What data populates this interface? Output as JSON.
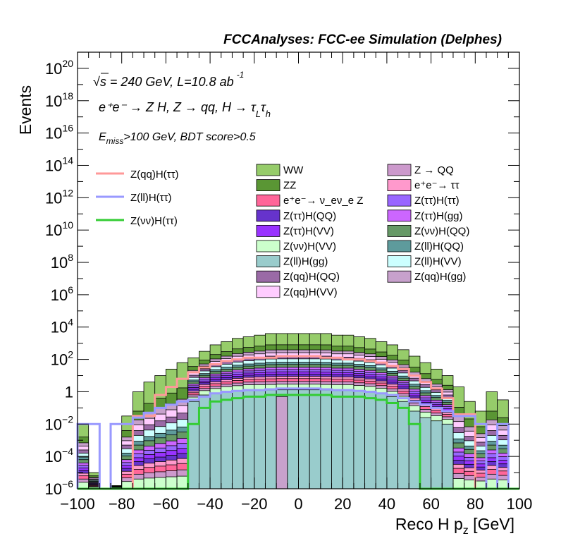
{
  "chart_data": {
    "type": "bar",
    "title": "FCCAnalyses: FCC-ee Simulation (Delphes)",
    "xlabel": "Reco H p_z [GeV]",
    "ylabel": "Events",
    "xlim": [
      -100,
      100
    ],
    "ylim_log10": [
      -6,
      21
    ],
    "y_scale": "log",
    "x_ticks": [
      -100,
      -80,
      -60,
      -40,
      -20,
      0,
      20,
      40,
      60,
      80,
      100
    ],
    "x_tick_labels": [
      "−100",
      "−80",
      "−60",
      "−40",
      "−20",
      "0",
      "20",
      "40",
      "60",
      "80",
      "100"
    ],
    "y_ticks": [
      {
        "exp": -6,
        "base": "10",
        "sup": "−6"
      },
      {
        "exp": -4,
        "base": "10",
        "sup": "−4"
      },
      {
        "exp": -2,
        "base": "10",
        "sup": "−2"
      },
      {
        "exp": 0,
        "base": "1",
        "sup": ""
      },
      {
        "exp": 2,
        "base": "10",
        "sup": "2"
      },
      {
        "exp": 4,
        "base": "10",
        "sup": "4"
      },
      {
        "exp": 6,
        "base": "10",
        "sup": "6"
      },
      {
        "exp": 8,
        "base": "10",
        "sup": "8"
      },
      {
        "exp": 10,
        "base": "10",
        "sup": "10"
      },
      {
        "exp": 12,
        "base": "10",
        "sup": "12"
      },
      {
        "exp": 14,
        "base": "10",
        "sup": "14"
      },
      {
        "exp": 16,
        "base": "10",
        "sup": "16"
      },
      {
        "exp": 18,
        "base": "10",
        "sup": "18"
      },
      {
        "exp": 20,
        "base": "10",
        "sup": "20"
      }
    ],
    "annotations": {
      "energy": "√s = 240 GeV, L=10.8 ab",
      "energy_sup": "-1",
      "process": "e⁺e⁻ → Z H, Z → qq, H → τ_L τ_h",
      "cut": "E_miss>100 GeV, BDT score>0.5"
    },
    "bin_edges": [
      -100,
      -95,
      -90,
      -85,
      -80,
      -75,
      -70,
      -65,
      -60,
      -55,
      -50,
      -45,
      -40,
      -35,
      -30,
      -25,
      -20,
      -15,
      -10,
      -5,
      0,
      5,
      10,
      15,
      20,
      25,
      30,
      35,
      40,
      45,
      50,
      55,
      60,
      65,
      70,
      75,
      80,
      85,
      90,
      95,
      100
    ],
    "stack_totals_log10": [
      -2.0,
      -5.0,
      -6.0,
      -5.8,
      -1.5,
      0.0,
      0.6,
      1.0,
      1.4,
      1.8,
      2.1,
      2.5,
      2.9,
      3.1,
      3.3,
      3.4,
      3.5,
      3.6,
      3.6,
      3.6,
      3.6,
      3.6,
      3.6,
      3.5,
      3.5,
      3.4,
      3.3,
      3.1,
      2.9,
      2.6,
      2.2,
      1.8,
      1.4,
      1.0,
      0.3,
      -0.6,
      -1.2,
      0.0,
      -0.5,
      -6.0
    ],
    "background_layers": [
      {
        "name": "WW",
        "color": "#96cc6a",
        "fraction": 1.0
      },
      {
        "name": "ZZ",
        "color": "#5a9634",
        "fraction": 0.8
      },
      {
        "name": "Z(qq)H(gg)",
        "color": "#c7a1cc",
        "fraction": 0.71
      },
      {
        "name": "Z(qq)H(VV)",
        "color": "#ffccff",
        "fraction": 0.66
      },
      {
        "name": "Z(qq)H(QQ)",
        "color": "#9a6aa6",
        "fraction": 0.6
      },
      {
        "name": "Z(ll)H(VV)",
        "color": "#ccffff",
        "fraction": 0.55
      },
      {
        "name": "Z(ll)H(QQ)",
        "color": "#5e9b9c",
        "fraction": 0.49
      },
      {
        "name": "Z(νν)H(QQ)",
        "color": "#669966",
        "fraction": 0.45
      },
      {
        "name": "Z(ττ)H(gg)",
        "color": "#cc66ff",
        "fraction": 0.4
      },
      {
        "name": "Z(ττ)H(ττ)",
        "color": "#9966ff",
        "fraction": 0.36
      },
      {
        "name": "Z(ττ)H(VV)",
        "color": "#9933ff",
        "fraction": 0.32
      },
      {
        "name": "Z(ττ)H(QQ)",
        "color": "#6633cc",
        "fraction": 0.28
      },
      {
        "name": "e⁺e⁻→ ττ",
        "color": "#ff99cc",
        "fraction": 0.24
      },
      {
        "name": "e⁺e⁻→ ν_eν_e Z",
        "color": "#ff6699",
        "fraction": 0.2
      },
      {
        "name": "Z → QQ",
        "color": "#cc99cc",
        "fraction": 0.15
      },
      {
        "name": "Z(νν)H(VV)",
        "color": "#ccffcc",
        "fraction": 0.1
      },
      {
        "name": "Z(ll)H(gg)",
        "color": "#99cccc",
        "fraction": 0.0
      }
    ],
    "base_layer_log10": [
      -6,
      -6,
      -6,
      -6,
      -6,
      -6,
      -6,
      -6,
      -6,
      -6,
      -0.6,
      -0.2,
      -0.1,
      0.0,
      0.05,
      0.1,
      0.1,
      0.1,
      0.12,
      0.12,
      0.12,
      0.12,
      0.1,
      0.1,
      0.1,
      0.05,
      0.0,
      -0.1,
      -0.3,
      -0.6,
      -1.2,
      -1.6,
      -1.8,
      -2.0,
      -6,
      -6,
      -6,
      -6,
      -6,
      -6
    ],
    "signals": [
      {
        "name": "Z(qq)H(ττ)",
        "color": "#ff9999",
        "values_log10": [
          -6,
          -6,
          -6,
          -6,
          -6,
          -1.5,
          -1.5,
          -0.2,
          0.3,
          0.8,
          1.2,
          1.5,
          1.7,
          1.9,
          2.0,
          2.1,
          2.1,
          2.1,
          2.2,
          2.2,
          2.2,
          2.2,
          2.1,
          2.1,
          2.0,
          2.0,
          1.9,
          1.8,
          1.6,
          1.4,
          1.0,
          0.6,
          0.2,
          -0.4,
          -1.4,
          -1.4,
          -6,
          -6,
          -6,
          -6
        ]
      },
      {
        "name": "Z(ll)H(ττ)",
        "color": "#9999ff",
        "values_log10": [
          -2.0,
          -2.0,
          -6,
          -2.0,
          -2.0,
          -1.6,
          -1.3,
          -1.0,
          -0.8,
          -0.6,
          -0.5,
          -0.3,
          -0.1,
          0.0,
          0.05,
          0.1,
          0.1,
          0.15,
          0.2,
          0.2,
          0.2,
          0.2,
          0.15,
          0.1,
          0.1,
          0.05,
          0.0,
          -0.1,
          -0.2,
          -0.4,
          -0.6,
          -0.8,
          -1.0,
          -1.2,
          -1.5,
          -1.5,
          -2.0,
          -6,
          -2.0,
          -6
        ]
      },
      {
        "name": "Z(νν)H(ττ)",
        "color": "#33cc33",
        "values_log10": [
          -6,
          -6,
          -6,
          -6,
          -6,
          -6,
          -6,
          -6,
          -6,
          -6,
          -2.0,
          -1.0,
          -0.6,
          -0.5,
          -0.4,
          -0.3,
          -0.3,
          -0.2,
          -0.2,
          -0.2,
          -0.2,
          -0.2,
          -0.2,
          -0.3,
          -0.3,
          -0.3,
          -0.4,
          -0.5,
          -0.7,
          -1.0,
          -2.0,
          -6,
          -6,
          -6,
          -6,
          -6,
          -6,
          -6,
          -6,
          -6
        ]
      }
    ],
    "spike": {
      "x": [
        -10,
        -5
      ],
      "value_log10": -0.3,
      "color": "#c7a1cc"
    },
    "signal_legend": [
      "Z(qq)H(ττ)",
      "Z(ll)H(ττ)",
      "Z(νν)H(ττ)"
    ],
    "legend_col1": [
      {
        "name": "WW",
        "color": "#96cc6a"
      },
      {
        "name": "ZZ",
        "color": "#5a9634"
      },
      {
        "name": "e⁺e⁻→ ν_eν_e Z",
        "color": "#ff6699"
      },
      {
        "name": "Z(ττ)H(QQ)",
        "color": "#6633cc"
      },
      {
        "name": "Z(ττ)H(VV)",
        "color": "#9933ff"
      },
      {
        "name": "Z(νν)H(VV)",
        "color": "#ccffcc"
      },
      {
        "name": "Z(ll)H(gg)",
        "color": "#99cccc"
      },
      {
        "name": "Z(qq)H(QQ)",
        "color": "#9a6aa6"
      },
      {
        "name": "Z(qq)H(VV)",
        "color": "#ffccff"
      }
    ],
    "legend_col2": [
      {
        "name": "Z → QQ",
        "color": "#cc99cc"
      },
      {
        "name": "e⁺e⁻→ ττ",
        "color": "#ff99cc"
      },
      {
        "name": "Z(ττ)H(ττ)",
        "color": "#9966ff"
      },
      {
        "name": "Z(ττ)H(gg)",
        "color": "#cc66ff"
      },
      {
        "name": "Z(νν)H(QQ)",
        "color": "#669966"
      },
      {
        "name": "Z(ll)H(QQ)",
        "color": "#5e9b9c"
      },
      {
        "name": "Z(ll)H(VV)",
        "color": "#ccffff"
      },
      {
        "name": "Z(qq)H(gg)",
        "color": "#c7a1cc"
      }
    ]
  }
}
